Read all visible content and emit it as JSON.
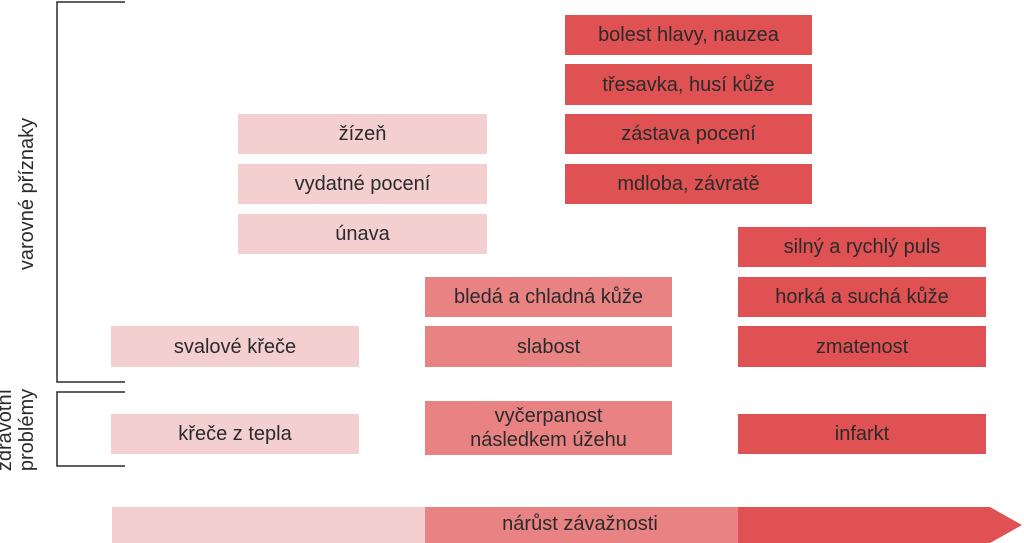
{
  "axes": {
    "warning_signs": "varovné příznaky",
    "health_problems": "zdravotní\nproblémy",
    "severity": "nárůst závažnosti"
  },
  "columns": [
    {
      "level": 1,
      "color": "#f4cfcf",
      "warning_signs": [
        "žízeň",
        "vydatné pocení",
        "únava",
        "svalové křeče"
      ],
      "health_problem": "křeče z tepla"
    },
    {
      "level": 2,
      "color": "#e98282",
      "warning_signs": [
        "bledá a chladná kůže",
        "slabost"
      ],
      "health_problem": "vyčerpanost\nnásledkem úžehu"
    },
    {
      "level": 3,
      "color": "#df5153",
      "warning_signs": [
        "bolest hlavy, nauzea",
        "třesavka, husí kůže",
        "zástava pocení",
        "mdloba, závratě",
        "silný a rychlý puls",
        "horká a suchá kůže",
        "zmatenost"
      ],
      "health_problem": "infarkt"
    }
  ]
}
